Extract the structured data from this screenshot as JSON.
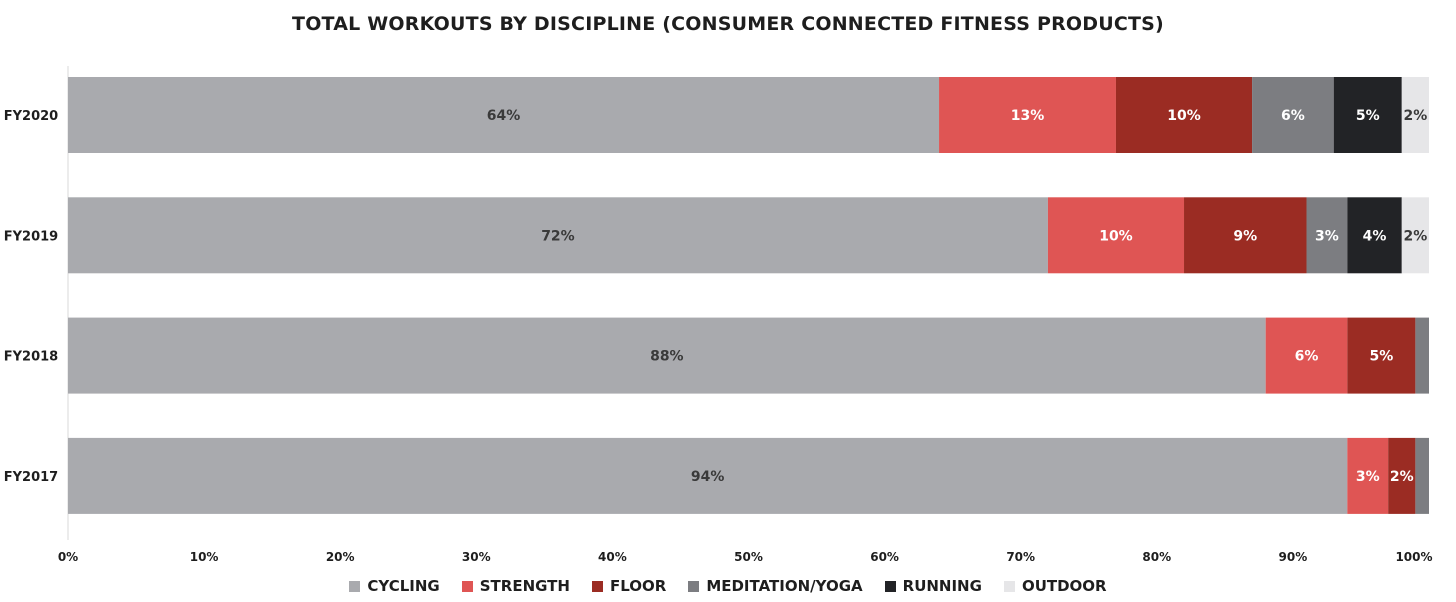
{
  "chart_data": {
    "type": "bar",
    "orientation": "horizontal",
    "stacked": true,
    "title": "TOTAL WORKOUTS BY DISCIPLINE (CONSUMER CONNECTED FITNESS PRODUCTS)",
    "xlabel": "",
    "ylabel": "",
    "xlim": [
      0,
      100
    ],
    "x_ticks": [
      "0%",
      "10%",
      "20%",
      "30%",
      "40%",
      "50%",
      "60%",
      "70%",
      "80%",
      "90%",
      "100%"
    ],
    "categories": [
      "FY2020",
      "FY2019",
      "FY2018",
      "FY2017"
    ],
    "series": [
      {
        "name": "CYCLING",
        "color": "#a9aaae",
        "label_color": "#3a3a3a",
        "values": [
          64,
          72,
          88,
          94
        ],
        "labels": [
          "64%",
          "72%",
          "88%",
          "94%"
        ]
      },
      {
        "name": "STRENGTH",
        "color": "#df5554",
        "label_color": "#ffffff",
        "values": [
          13,
          10,
          6,
          3
        ],
        "labels": [
          "13%",
          "10%",
          "6%",
          "3%"
        ]
      },
      {
        "name": "FLOOR",
        "color": "#9b2c23",
        "label_color": "#ffffff",
        "values": [
          10,
          9,
          5,
          2
        ],
        "labels": [
          "10%",
          "9%",
          "5%",
          "2%"
        ]
      },
      {
        "name": "MEDITATION/YOGA",
        "color": "#7c7d81",
        "label_color": "#ffffff",
        "values": [
          6,
          3,
          1,
          1
        ],
        "labels": [
          "6%",
          "3%",
          "",
          ""
        ]
      },
      {
        "name": "RUNNING",
        "color": "#222326",
        "label_color": "#ffffff",
        "values": [
          5,
          4,
          0,
          0
        ],
        "labels": [
          "5%",
          "4%",
          "",
          ""
        ]
      },
      {
        "name": "OUTDOOR",
        "color": "#e6e6e8",
        "label_color": "#3a3a3a",
        "values": [
          2,
          2,
          0,
          0
        ],
        "labels": [
          "2%",
          "2%",
          "",
          ""
        ]
      }
    ],
    "grid": false,
    "legend_position": "bottom"
  }
}
